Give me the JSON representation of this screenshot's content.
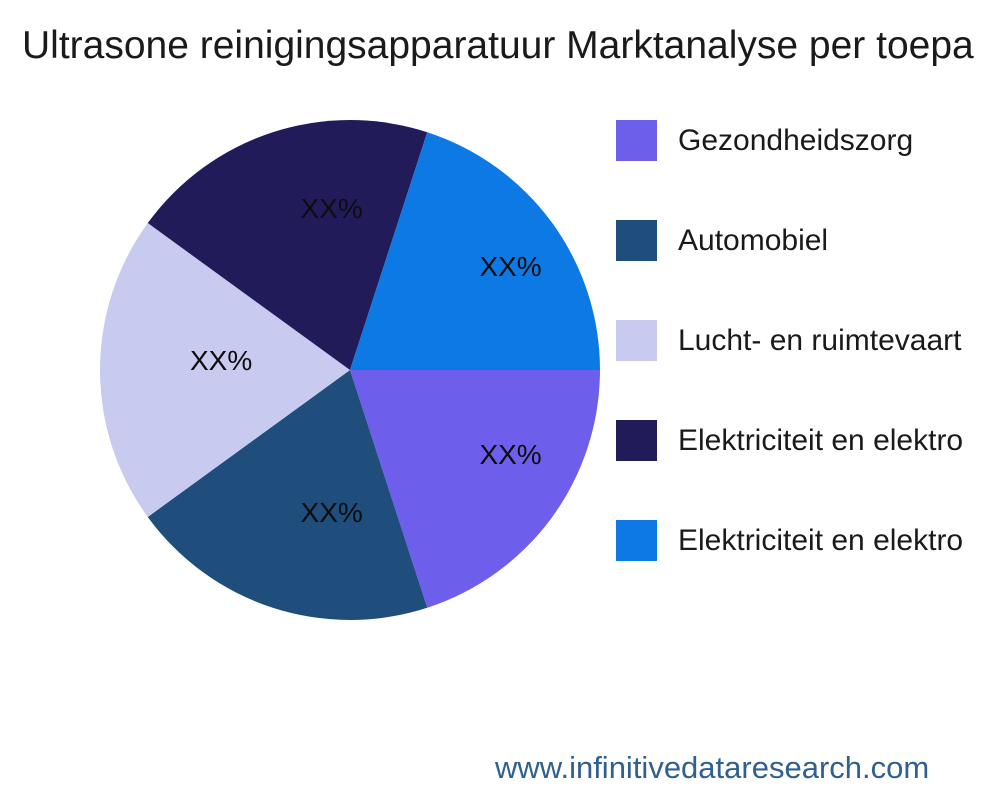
{
  "page": {
    "watermark": "www.infinitivedataresearch.com"
  },
  "chart_data": {
    "type": "pie",
    "title": "Ultrasone reinigingsapparatuur Marktanalyse per toepa",
    "legend_position": "right",
    "start_angle_deg": 0,
    "direction": "clockwise",
    "slices": [
      {
        "label": "Gezondheidszorg",
        "value": 20,
        "display_pct": "XX%",
        "color": "#6D5FEC"
      },
      {
        "label": "Automobiel",
        "value": 20,
        "display_pct": "XX%",
        "color": "#1F4E7C"
      },
      {
        "label": "Lucht- en ruimtevaart",
        "value": 20,
        "display_pct": "XX%",
        "color": "#C9CAEF"
      },
      {
        "label": "Elektriciteit en elektro",
        "value": 20,
        "display_pct": "XX%",
        "color": "#221B5A"
      },
      {
        "label": "Elektriciteit en elektro",
        "value": 20,
        "display_pct": "XX%",
        "color": "#0C79E4"
      }
    ]
  }
}
